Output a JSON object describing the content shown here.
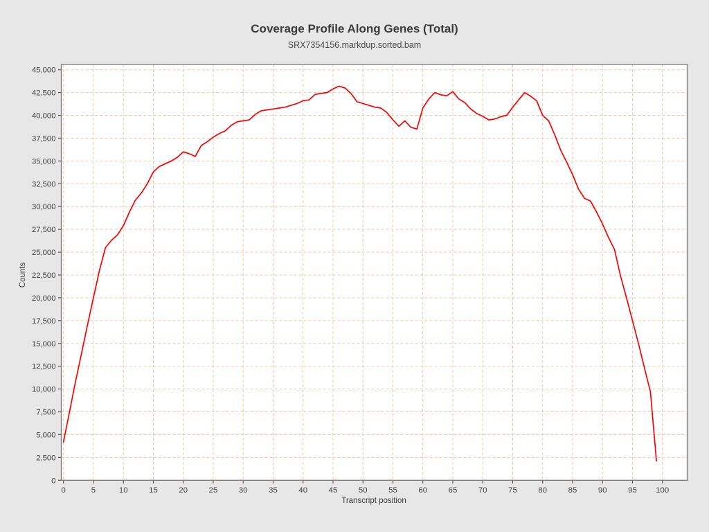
{
  "chart_data": {
    "type": "line",
    "title": "Coverage Profile Along Genes (Total)",
    "subtitle": "SRX7354156.markdup.sorted.bam",
    "xlabel": "Transcript position",
    "ylabel": "Counts",
    "xlim": [
      0,
      100
    ],
    "ylim": [
      0,
      45000
    ],
    "x_ticks": [
      0,
      5,
      10,
      15,
      20,
      25,
      30,
      35,
      40,
      45,
      50,
      55,
      60,
      65,
      70,
      75,
      80,
      85,
      90,
      95,
      100
    ],
    "y_ticks": [
      0,
      2500,
      5000,
      7500,
      10000,
      12500,
      15000,
      17500,
      20000,
      22500,
      25000,
      27500,
      30000,
      32500,
      35000,
      37500,
      40000,
      42500,
      45000
    ],
    "grid": true,
    "grid_style": "dashed",
    "legend": false,
    "series": [
      {
        "name": "SRX7354156.markdup.sorted.bam",
        "color": "#ff0000",
        "x_start": 0,
        "x_step": 1,
        "n_points": 100,
        "values": [
          4200,
          7500,
          10800,
          13900,
          17000,
          20000,
          23000,
          25500,
          26300,
          26900,
          27900,
          29400,
          30700,
          31500,
          32500,
          33800,
          34400,
          34700,
          35000,
          35400,
          36000,
          35800,
          35500,
          36700,
          37100,
          37600,
          38000,
          38300,
          38900,
          39300,
          39400,
          39500,
          40100,
          40500,
          40600,
          40700,
          40800,
          40900,
          41100,
          41300,
          41600,
          41700,
          42300,
          42400,
          42500,
          42900,
          43200,
          43000,
          42400,
          41500,
          41300,
          41100,
          40900,
          40800,
          40300,
          39500,
          38800,
          39400,
          38700,
          38500,
          40800,
          41800,
          42500,
          42250,
          42150,
          42600,
          41800,
          41400,
          40700,
          40200,
          39900,
          39500,
          39600,
          39850,
          40000,
          40900,
          41700,
          42500,
          42100,
          41600,
          40000,
          39400,
          37900,
          36200,
          34900,
          33500,
          31900,
          30900,
          30600,
          29400,
          28100,
          26600,
          25300,
          22400,
          20000,
          17500,
          15000,
          12300,
          9700,
          2100
        ]
      }
    ]
  },
  "style": {
    "page_bg": "#e7e7e7",
    "plot_bg": "#ffffff",
    "grid_color": "#f5c8a2",
    "axis_color": "#767676",
    "tick_color": "#555555",
    "text_color": "#3d3d3d",
    "line_color": "#ff0000"
  }
}
